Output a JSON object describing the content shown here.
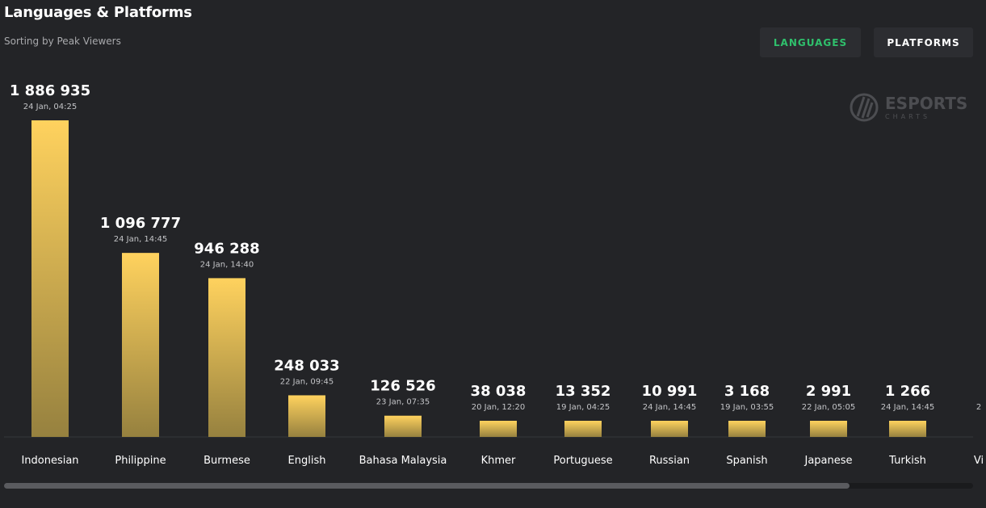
{
  "header": {
    "title": "Languages & Platforms",
    "subtitle": "Sorting by Peak Viewers"
  },
  "tabs": {
    "languages": "LANGUAGES",
    "platforms": "PLATFORMS"
  },
  "watermark": {
    "brand": "ESPORTS",
    "sub": "CHARTS"
  },
  "colors": {
    "accent_green": "#2fc06c",
    "bar_top": "#ffd25e",
    "bar_bottom": "#96813f",
    "background": "#232427"
  },
  "chart_data": {
    "type": "bar",
    "categories": [
      "Indonesian",
      "Philippine",
      "Burmese",
      "English",
      "Bahasa Malaysia",
      "Khmer",
      "Portuguese",
      "Russian",
      "Spanish",
      "Japanese",
      "Turkish",
      "Vi"
    ],
    "values": [
      1886935,
      1096777,
      946288,
      248033,
      126526,
      38038,
      13352,
      10991,
      3168,
      2991,
      1266,
      null
    ],
    "value_labels": [
      "1 886 935",
      "1 096 777",
      "946 288",
      "248 033",
      "126 526",
      "38 038",
      "13 352",
      "10 991",
      "3 168",
      "2 991",
      "1 266",
      ""
    ],
    "date_labels": [
      "24 Jan, 04:25",
      "24 Jan, 14:45",
      "24 Jan, 14:40",
      "22 Jan, 09:45",
      "23 Jan, 07:35",
      "20 Jan, 12:20",
      "19 Jan, 04:25",
      "24 Jan, 14:45",
      "19 Jan, 03:55",
      "22 Jan, 05:05",
      "24 Jan, 14:45",
      "2"
    ],
    "xlabel": "",
    "ylabel": "",
    "ylim": [
      0,
      1886935
    ],
    "grid": false
  }
}
